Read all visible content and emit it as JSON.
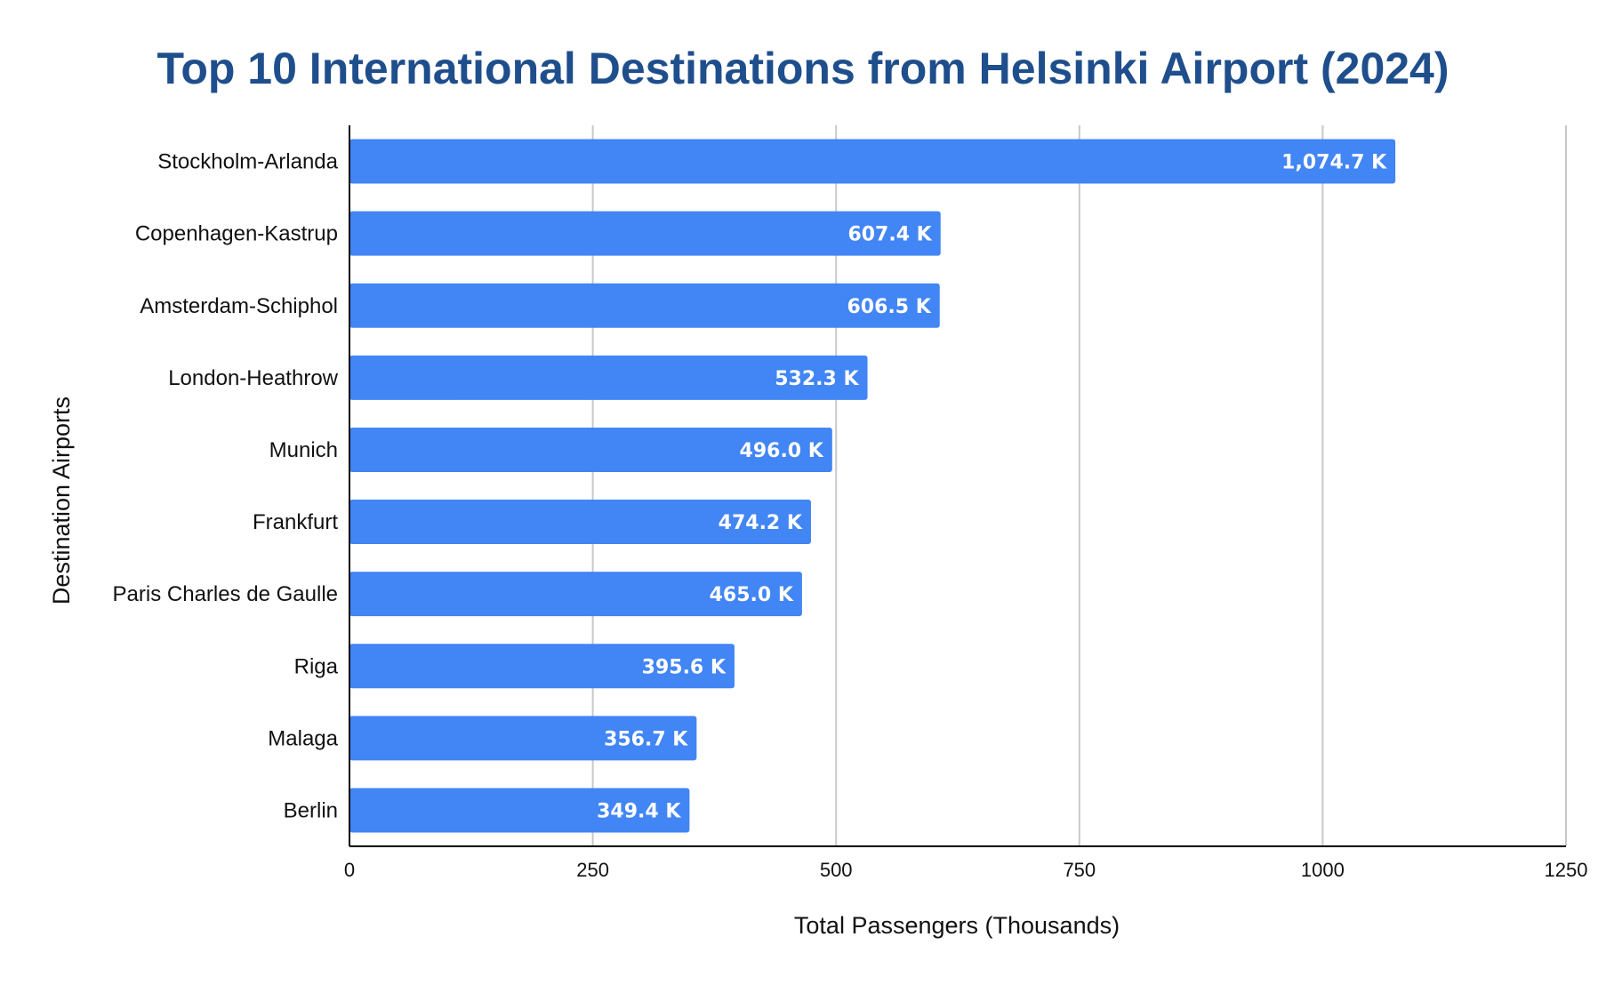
{
  "chart_data": {
    "type": "bar",
    "orientation": "horizontal",
    "title": "Top 10 International Destinations from Helsinki Airport (2024)",
    "xlabel": "Total Passengers (Thousands)",
    "ylabel": "Destination Airports",
    "xlim": [
      0,
      1250
    ],
    "xticks": [
      0,
      250,
      500,
      750,
      1000,
      1250
    ],
    "xtick_labels": [
      "0",
      "250",
      "500",
      "750",
      "1000",
      "1250"
    ],
    "grid": "vertical",
    "bar_color": "#4285f4",
    "title_color": "#1f4e8c",
    "categories": [
      "Stockholm-Arlanda",
      "Copenhagen-Kastrup",
      "Amsterdam-Schiphol",
      "London-Heathrow",
      "Munich",
      "Frankfurt",
      "Paris Charles de Gaulle",
      "Riga",
      "Malaga",
      "Berlin"
    ],
    "values": [
      1074.7,
      607.4,
      606.5,
      532.3,
      496.0,
      474.2,
      465.0,
      395.6,
      356.7,
      349.4
    ],
    "data_labels": [
      "1,074.7 K",
      "607.4 K",
      "606.5 K",
      "532.3 K",
      "496.0 K",
      "474.2 K",
      "465.0 K",
      "395.6 K",
      "356.7 K",
      "349.4 K"
    ]
  }
}
